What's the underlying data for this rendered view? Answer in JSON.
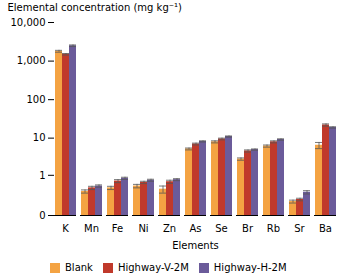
{
  "chart_data": {
    "type": "bar",
    "categories": [
      "K",
      "Mn",
      "Fe",
      "Ni",
      "Zn",
      "As",
      "Se",
      "Br",
      "Rb",
      "Sr",
      "Ba"
    ],
    "series": [
      {
        "name": "Blank",
        "color": "#F4A343",
        "values": [
          1800,
          0.32,
          0.42,
          0.48,
          0.38,
          5.2,
          8.0,
          2.8,
          6.2,
          0.13,
          6.5
        ],
        "errors": [
          100,
          0.04,
          0.05,
          0.06,
          0.1,
          0.3,
          0.5,
          0.2,
          0.4,
          0.02,
          1.2
        ]
      },
      {
        "name": "Highway-V-2M",
        "color": "#C0392B",
        "values": [
          1500,
          0.42,
          0.68,
          0.62,
          0.65,
          7.0,
          9.5,
          4.6,
          8.0,
          0.16,
          22.0
        ],
        "errors": [
          70,
          0.05,
          0.07,
          0.05,
          0.07,
          0.4,
          0.5,
          0.3,
          0.5,
          0.02,
          1.5
        ]
      },
      {
        "name": "Highway-H-2M",
        "color": "#6B5B9A",
        "values": [
          2500,
          0.48,
          0.82,
          0.72,
          0.75,
          8.2,
          11.0,
          5.0,
          9.2,
          0.3,
          19.0
        ],
        "errors": [
          120,
          0.04,
          0.06,
          0.05,
          0.05,
          0.3,
          0.4,
          0.2,
          0.4,
          0.04,
          0.8
        ]
      }
    ],
    "xlabel": "Elements",
    "ylabel": "Elemental concentration (mg kg⁻¹)",
    "ylim": [
      0,
      10000
    ],
    "yticks": [
      0,
      1,
      10,
      100,
      {
        "value": 1000,
        "label": "1,000"
      },
      {
        "value": 10000,
        "label": "10,000"
      }
    ],
    "log": "y",
    "grid": false,
    "legend": "bottom"
  }
}
